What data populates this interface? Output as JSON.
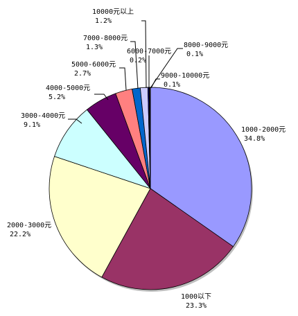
{
  "chart_data": {
    "type": "pie",
    "title": "",
    "slices": [
      {
        "label": "1000-2000元",
        "percent_label": "34.8%",
        "value": 34.8,
        "color": "#9999ff"
      },
      {
        "label": "1000以下",
        "percent_label": "23.3%",
        "value": 23.3,
        "color": "#993366"
      },
      {
        "label": "2000-3000元",
        "percent_label": "22.2%",
        "value": 22.2,
        "color": "#ffffcc"
      },
      {
        "label": "3000-4000元",
        "percent_label": "9.1%",
        "value": 9.1,
        "color": "#ccffff"
      },
      {
        "label": "4000-5000元",
        "percent_label": "5.2%",
        "value": 5.2,
        "color": "#660066"
      },
      {
        "label": "5000-6000元",
        "percent_label": "2.7%",
        "value": 2.7,
        "color": "#ff8080"
      },
      {
        "label": "7000-8000元",
        "percent_label": "1.3%",
        "value": 1.3,
        "color": "#0066cc"
      },
      {
        "label": "10000元以上",
        "percent_label": "1.2%",
        "value": 1.2,
        "color": "#ccccff"
      },
      {
        "label": "6000-7000元",
        "percent_label": "0.2%",
        "value": 0.2,
        "color": "#000080"
      },
      {
        "label": "8000-9000元",
        "percent_label": "0.1%",
        "value": 0.1,
        "color": "#ff00ff"
      },
      {
        "label": "9000-10000元",
        "percent_label": "0.1%",
        "value": 0.1,
        "color": "#ffff00"
      }
    ]
  }
}
